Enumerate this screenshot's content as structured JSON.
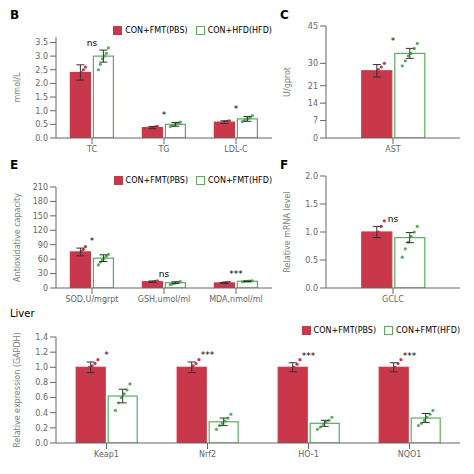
{
  "chart_data": [
    {
      "type": "bar",
      "title": "B",
      "ylabel": "mmol/L",
      "categories": [
        "TC",
        "TG",
        "LDL-C"
      ],
      "series": [
        {
          "name": "CON+FMT(PBS)",
          "color": "#C8374A",
          "values": [
            2.4,
            0.38,
            0.58
          ],
          "errors": [
            0.28,
            0.04,
            0.05
          ],
          "dots": [
            [
              2.0,
              2.2,
              2.3,
              2.4,
              2.5,
              2.6
            ],
            [
              0.33,
              0.36,
              0.38,
              0.39,
              0.41,
              0.43
            ],
            [
              0.52,
              0.55,
              0.57,
              0.59,
              0.61,
              0.63
            ]
          ]
        },
        {
          "name": "CON+HFD(HFD)",
          "color": "#5BAD5E",
          "values": [
            3.0,
            0.5,
            0.7
          ],
          "errors": [
            0.22,
            0.07,
            0.09
          ],
          "dots": [
            [
              2.5,
              2.7,
              2.9,
              3.0,
              3.1,
              3.3
            ],
            [
              0.42,
              0.46,
              0.49,
              0.51,
              0.54,
              0.58
            ],
            [
              0.6,
              0.65,
              0.69,
              0.71,
              0.75,
              0.82
            ]
          ]
        }
      ],
      "annotations": [
        "ns",
        "*",
        "*"
      ],
      "ylim": [
        0,
        3.7
      ],
      "yticks": [
        {
          "value": 0,
          "label": "0.0"
        },
        0.5,
        {
          "value": 1,
          "label": "1.0"
        },
        1.5,
        {
          "value": 2,
          "label": "2.0"
        },
        2.5,
        {
          "value": 3,
          "label": "3.0"
        },
        3.5
      ],
      "grid": false,
      "legend": "upper right"
    },
    {
      "type": "bar",
      "title": "C",
      "ylabel": "U/gprot",
      "categories": [
        "AST"
      ],
      "series": [
        {
          "color": "#C8374A",
          "values": [
            27.0
          ],
          "errors": [
            2.5
          ],
          "dots": [
            [
              22.0,
              24.0,
              26.0,
              27.5,
              28.5,
              30.0
            ]
          ]
        },
        {
          "color": "#5BAD5E",
          "values": [
            34.0
          ],
          "errors": [
            2.0
          ],
          "dots": [
            [
              29.0,
              31.0,
              33.0,
              34.0,
              36.0,
              38.0
            ]
          ]
        }
      ],
      "annotations": [
        "*"
      ],
      "ylim": [
        0,
        45
      ],
      "yticks": [
        0,
        7,
        14,
        21,
        30,
        45
      ],
      "grid": false
    },
    {
      "type": "bar",
      "title": "E",
      "ylabel": "Antioxidative capacity",
      "categories": [
        "SOD,U/mgrpt",
        "GSH,umol/ml",
        "MDA,nmol/ml"
      ],
      "series": [
        {
          "name": "CON+FMT(PBS)",
          "color": "#C8374A",
          "values": [
            75.0,
            13.0,
            10.5
          ],
          "errors": [
            8.0,
            1.5,
            1.0
          ],
          "dots": [
            [
              62,
              68,
              72,
              76,
              80,
              86
            ],
            [
              10,
              11,
              12,
              13,
              14,
              15
            ],
            [
              8.5,
              9.5,
              10.5,
              11,
              11.5,
              12
            ]
          ]
        },
        {
          "name": "CON+FMT(HFD)",
          "color": "#5BAD5E",
          "values": [
            62.0,
            11.0,
            14.0
          ],
          "errors": [
            7.0,
            1.8,
            0.5
          ],
          "dots": [
            [
              48,
              54,
              58,
              62,
              66,
              70
            ],
            [
              7,
              8.5,
              10,
              11,
              12,
              13.5
            ],
            [
              13,
              13.5,
              14,
              14.2,
              14.5,
              14.8
            ]
          ]
        }
      ],
      "annotations": [
        "*",
        "ns",
        "***"
      ],
      "ylim": [
        0,
        210
      ],
      "yticks": [
        0,
        30,
        60,
        90,
        120,
        150,
        180,
        210
      ],
      "grid": false,
      "legend": "upper right"
    },
    {
      "type": "bar",
      "title": "F",
      "ylabel": "Relative mRNA level",
      "categories": [
        "GCLC"
      ],
      "series": [
        {
          "color": "#C8374A",
          "values": [
            1.0
          ],
          "errors": [
            0.1
          ],
          "dots": [
            [
              0.65,
              0.75,
              0.85,
              1.0,
              1.1,
              1.2
            ]
          ]
        },
        {
          "color": "#5BAD5E",
          "values": [
            0.9
          ],
          "errors": [
            0.09
          ],
          "dots": [
            [
              0.55,
              0.7,
              0.82,
              0.92,
              1.0,
              1.1
            ]
          ]
        }
      ],
      "annotations": [
        "ns"
      ],
      "ylim": [
        0,
        2
      ],
      "yticks": [
        {
          "value": 0,
          "label": "0.0"
        },
        0.5,
        {
          "value": 1,
          "label": "1.0"
        },
        1.5,
        {
          "value": 2,
          "label": "2.0"
        }
      ],
      "grid": false
    },
    {
      "type": "bar",
      "title": "Liver",
      "ylabel": "Relative expression (GAPDH)",
      "categories": [
        "Keap1",
        "Nrf2",
        "HO-1",
        "NQO1"
      ],
      "series": [
        {
          "name": "CON+FMT(PBS)",
          "color": "#C8374A",
          "values": [
            1.0,
            1.0,
            1.0,
            1.0
          ],
          "errors": [
            0.07,
            0.07,
            0.06,
            0.06
          ],
          "dots": [
            [
              0.9,
              0.95,
              1.0,
              1.02,
              1.05,
              1.1
            ],
            [
              0.88,
              0.93,
              0.98,
              1.02,
              1.05,
              1.1
            ],
            [
              0.9,
              0.95,
              0.98,
              1.0,
              1.04,
              1.1
            ],
            [
              0.9,
              0.95,
              0.98,
              1.0,
              1.05,
              1.1
            ]
          ]
        },
        {
          "name": "CON+FMT(HFD)",
          "color": "#5BAD5E",
          "values": [
            0.62,
            0.28,
            0.26,
            0.33
          ],
          "errors": [
            0.09,
            0.05,
            0.04,
            0.06
          ],
          "dots": [
            [
              0.43,
              0.53,
              0.6,
              0.65,
              0.7,
              0.78
            ],
            [
              0.18,
              0.23,
              0.26,
              0.29,
              0.33,
              0.38
            ],
            [
              0.18,
              0.21,
              0.25,
              0.28,
              0.3,
              0.34
            ],
            [
              0.23,
              0.26,
              0.3,
              0.34,
              0.38,
              0.43
            ]
          ]
        }
      ],
      "annotations": [
        "*",
        "***",
        "***",
        "***"
      ],
      "ylim": [
        0,
        1.4
      ],
      "yticks": [
        {
          "value": 0,
          "label": "0.0"
        },
        0.2,
        0.4,
        0.6,
        0.8,
        {
          "value": 1,
          "label": "1.0"
        },
        1.2,
        1.4
      ],
      "grid": false,
      "legend": "upper right"
    }
  ]
}
